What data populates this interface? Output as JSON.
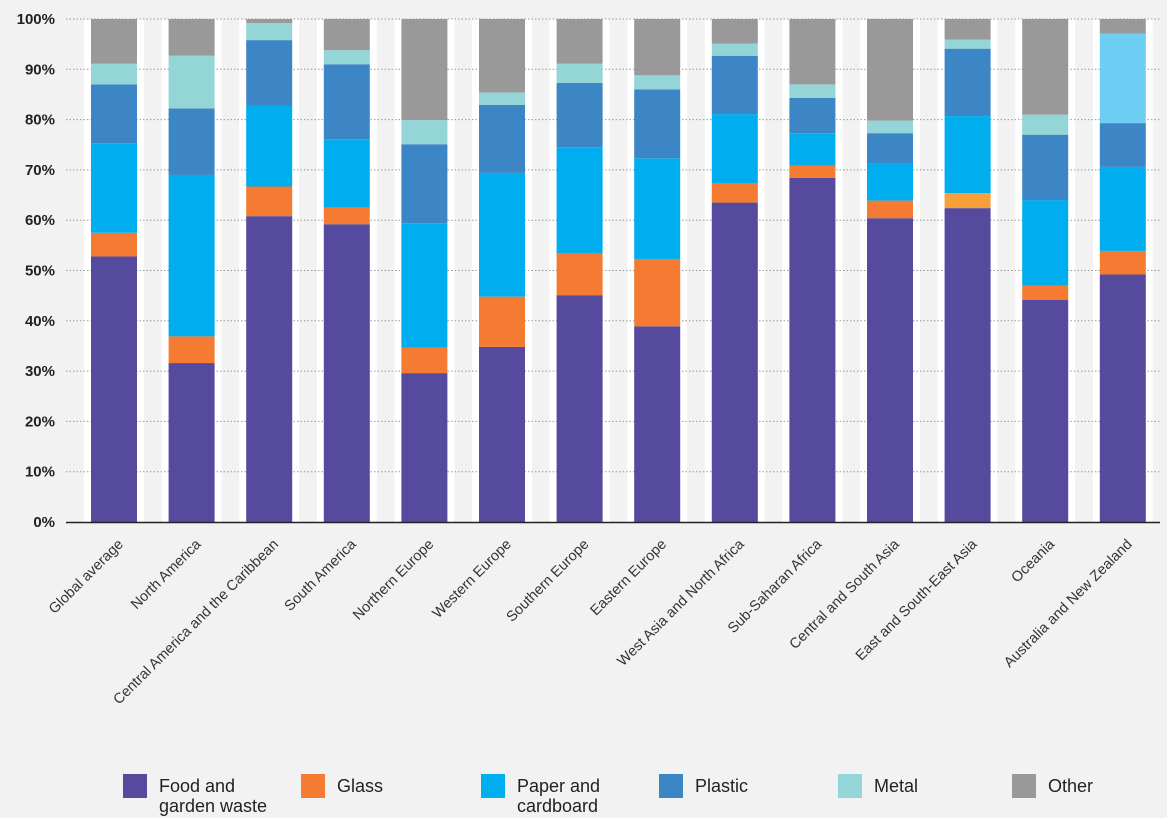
{
  "chart_data": {
    "type": "bar",
    "stacked": true,
    "categories": [
      "Global average",
      "North America",
      "Central America and the Caribbean",
      "South America",
      "Northern Europe",
      "Western Europe",
      "Southern Europe",
      "Eastern Europe",
      "West Asia and North Africa",
      "Sub-Saharan Africa",
      "Central and South Asia",
      "East and South-East Asia",
      "Oceania",
      "Australia and New Zealand"
    ],
    "series": [
      {
        "name": "Food and garden waste",
        "color": "#554a9e",
        "values": [
          52.8,
          31.6,
          60.8,
          59.2,
          29.6,
          34.8,
          45.1,
          38.9,
          63.5,
          68.4,
          60.4,
          62.4,
          44.2,
          49.2
        ]
      },
      {
        "name": "Glass",
        "color": "#f47b31",
        "values": [
          4.7,
          5.3,
          5.9,
          3.3,
          5.1,
          10.0,
          8.3,
          13.4,
          3.9,
          2.4,
          3.5,
          3.0,
          2.8,
          4.7
        ]
      },
      {
        "name": "Paper and cardboard",
        "color": "#00aeef",
        "values": [
          17.8,
          32.1,
          16.1,
          13.6,
          24.7,
          24.6,
          21.1,
          20.0,
          13.7,
          6.5,
          7.3,
          15.3,
          17.0,
          16.7
        ]
      },
      {
        "name": "Plastic",
        "color": "#3c86c6",
        "values": [
          11.7,
          13.2,
          13.0,
          14.9,
          15.7,
          13.5,
          12.8,
          13.7,
          11.6,
          7.0,
          6.1,
          13.4,
          13.0,
          8.7
        ]
      },
      {
        "name": "Metal",
        "color": "#94d5d7",
        "values": [
          4.1,
          10.5,
          3.4,
          2.8,
          4.8,
          2.5,
          3.8,
          2.8,
          2.4,
          2.7,
          2.5,
          1.8,
          4.0,
          17.8
        ]
      },
      {
        "name": "Other",
        "color": "#999999",
        "values": [
          8.9,
          7.3,
          0.8,
          6.2,
          20.1,
          14.6,
          8.9,
          11.2,
          4.9,
          13.0,
          20.2,
          4.1,
          19.0,
          2.9
        ]
      }
    ],
    "overrides": [
      {
        "category": 11,
        "series": 1,
        "color": "#f7a03a"
      },
      {
        "category": 13,
        "series": 4,
        "color": "#6dcdf2"
      }
    ],
    "yticks": [
      "0%",
      "10%",
      "20%",
      "30%",
      "40%",
      "50%",
      "60%",
      "70%",
      "80%",
      "90%",
      "100%"
    ],
    "ylim": [
      0,
      100
    ],
    "grid": true,
    "legend": {
      "position": "bottom",
      "items": [
        {
          "lines": [
            "Food and",
            "garden waste"
          ],
          "color": "#554a9e"
        },
        {
          "lines": [
            "Glass"
          ],
          "color": "#f47b31"
        },
        {
          "lines": [
            "Paper and",
            "cardboard"
          ],
          "color": "#00aeef"
        },
        {
          "lines": [
            "Plastic"
          ],
          "color": "#3c86c6"
        },
        {
          "lines": [
            "Metal"
          ],
          "color": "#94d5d7"
        },
        {
          "lines": [
            "Other"
          ],
          "color": "#999999"
        }
      ]
    },
    "colors": {
      "background": "#f2f2f2",
      "column_band": "#ffffff",
      "axis": "#222222",
      "grid": "#9a9a9a"
    }
  }
}
